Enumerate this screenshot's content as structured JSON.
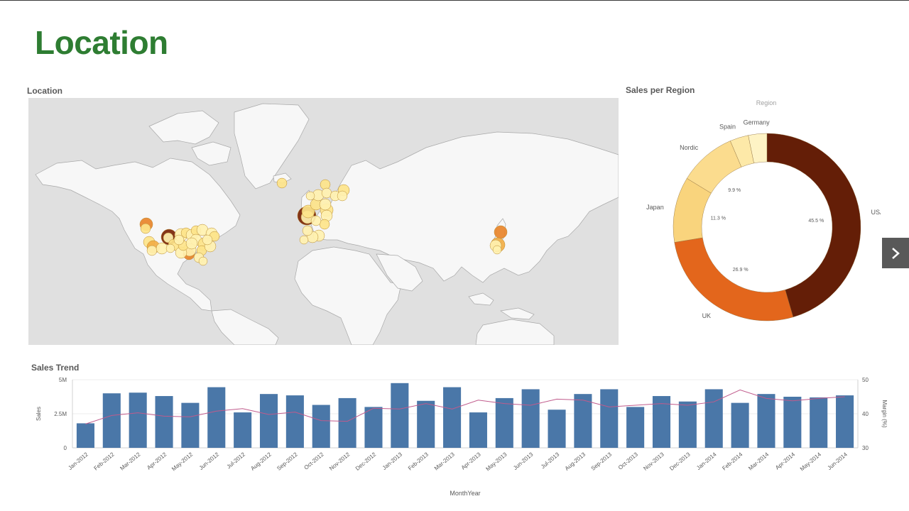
{
  "page": {
    "title": "Location"
  },
  "map": {
    "title": "Location",
    "colors": {
      "ocean": "#e0e0e0",
      "land": "#f7f7f7",
      "border": "#a8a8a8"
    },
    "bubble_colors": [
      "#fff1b0",
      "#fde48a",
      "#f9d56e",
      "#f2ae45",
      "#e8842a",
      "#cc5a1a",
      "#7a2406"
    ]
  },
  "pie": {
    "title": "Sales per Region",
    "legend_title": "Region",
    "chart_data": {
      "type": "pie",
      "categories": [
        "USA",
        "UK",
        "Japan",
        "Nordic",
        "Spain",
        "Germany"
      ],
      "values": [
        45.5,
        26.9,
        11.3,
        9.9,
        3.2,
        3.2
      ],
      "value_labels": [
        "45.5 %",
        "26.9 %",
        "11.3 %",
        "9.9 %",
        "",
        ""
      ],
      "colors": [
        "#641e07",
        "#e3661c",
        "#f9d47d",
        "#fbdc8e",
        "#fde9a8",
        "#fef3c5"
      ]
    }
  },
  "trend": {
    "title": "Sales Trend",
    "chart_data": {
      "type": "bar",
      "categories": [
        "Jan-2012",
        "Feb-2012",
        "Mar-2012",
        "Apr-2012",
        "May-2012",
        "Jun-2012",
        "Jul-2012",
        "Aug-2012",
        "Sep-2012",
        "Oct-2012",
        "Nov-2012",
        "Dec-2012",
        "Jan-2013",
        "Feb-2013",
        "Mar-2013",
        "Apr-2013",
        "May-2013",
        "Jun-2013",
        "Jul-2013",
        "Aug-2013",
        "Sep-2013",
        "Oct-2013",
        "Nov-2013",
        "Dec-2013",
        "Jan-2014",
        "Feb-2014",
        "Mar-2014",
        "Apr-2014",
        "May-2014",
        "Jun-2014"
      ],
      "series": [
        {
          "name": "Sales",
          "type": "bar",
          "color": "#4a77a8",
          "values": [
            1.8,
            4.0,
            4.05,
            3.8,
            3.3,
            4.45,
            2.6,
            3.95,
            3.85,
            3.15,
            3.65,
            3.0,
            4.75,
            3.45,
            4.45,
            2.6,
            3.65,
            4.3,
            2.8,
            3.95,
            4.3,
            3.0,
            3.8,
            3.4,
            4.3,
            3.3,
            3.95,
            3.75,
            3.7,
            3.85
          ]
        },
        {
          "name": "Margin (%)",
          "type": "line",
          "color": "#c05b8c",
          "values": [
            37,
            39.5,
            40.3,
            39.3,
            39.1,
            40.8,
            41.5,
            39.8,
            40.5,
            38,
            37.8,
            41.6,
            41.4,
            43,
            41.4,
            44,
            43,
            42.5,
            44.3,
            44,
            42,
            42.5,
            43,
            42.5,
            43.5,
            47,
            44.5,
            43.8,
            44.5,
            45
          ]
        }
      ],
      "xlabel": "MonthYear",
      "ylabel": "Sales",
      "y2label": "Margin (%)",
      "ylim": [
        0,
        5
      ],
      "y2lim": [
        30,
        50
      ],
      "yticks": [
        "0",
        "2.5M",
        "5M"
      ],
      "y2ticks": [
        "30",
        "40",
        "50"
      ]
    }
  },
  "nav": {
    "next_icon": "chevron-right-icon"
  }
}
